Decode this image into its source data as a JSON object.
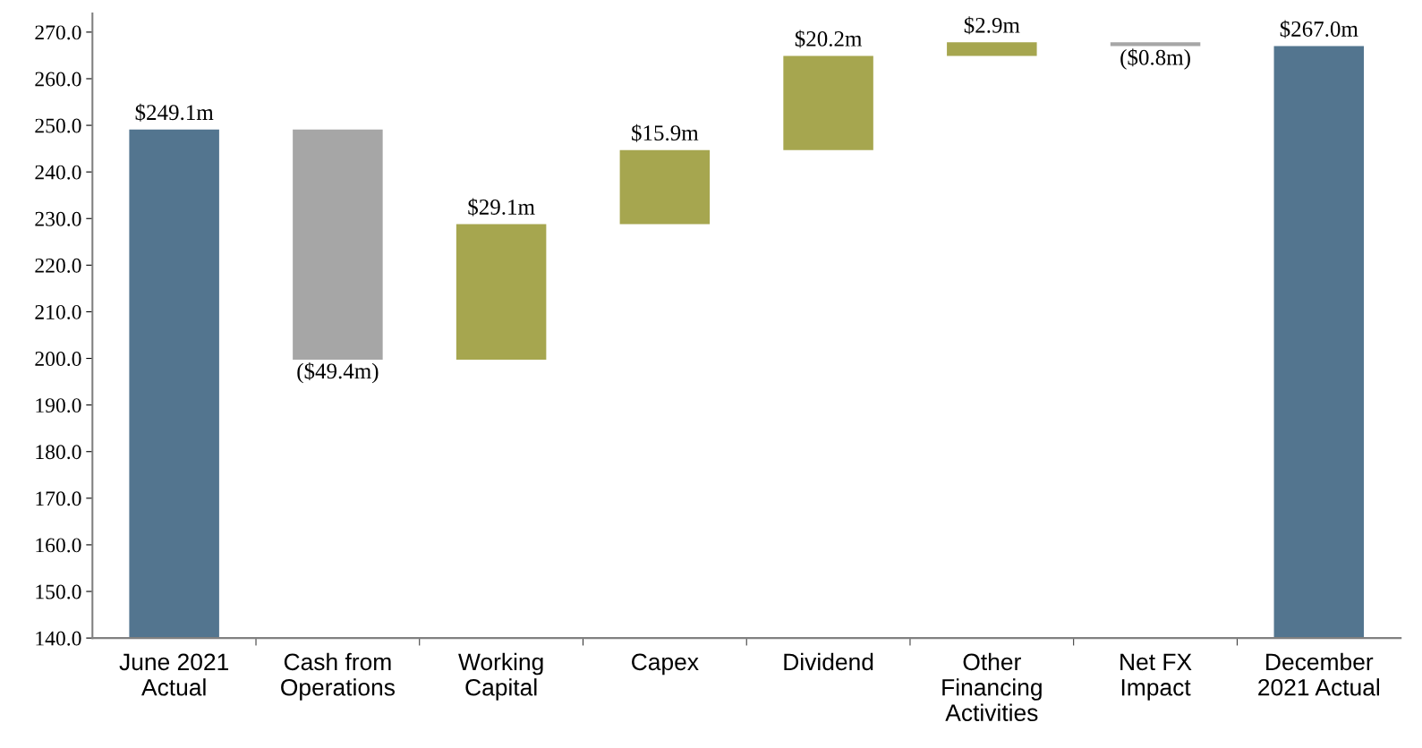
{
  "chart_data": {
    "type": "bar",
    "categories": [
      "June 2021\nActual",
      "Cash from\nOperations",
      "Working\nCapital",
      "Capex",
      "Dividend",
      "Other\nFinancing\nActivities",
      "Net FX\nImpact",
      "December\n2021 Actual"
    ],
    "values": [
      249.1,
      -49.4,
      29.1,
      15.9,
      20.2,
      2.9,
      -0.8,
      267.0
    ],
    "base": [
      null,
      249.1,
      199.7,
      228.8,
      244.7,
      264.9,
      267.8,
      null
    ],
    "colors": [
      "#53758f",
      "#a6a6a6",
      "#a6a64f",
      "#a6a64f",
      "#a6a64f",
      "#a6a64f",
      "#a6a6a6",
      "#53758f"
    ],
    "value_labels": [
      "$249.1m",
      "($49.4m)",
      "$29.1m",
      "$15.9m",
      "$20.2m",
      "$2.9m",
      "($0.8m)",
      "$267.0m"
    ],
    "ylim": [
      140,
      274
    ],
    "yticks": [
      {
        "value": 140,
        "label": "140.0"
      },
      {
        "value": 150,
        "label": "150.0"
      },
      {
        "value": 160,
        "label": "160.0"
      },
      {
        "value": 170,
        "label": "170.0"
      },
      {
        "value": 180,
        "label": "180.0"
      },
      {
        "value": 190,
        "label": "190.0"
      },
      {
        "value": 200,
        "label": "200.0"
      },
      {
        "value": 210,
        "label": "210.0"
      },
      {
        "value": 220,
        "label": "220.0"
      },
      {
        "value": 230,
        "label": "230.0"
      },
      {
        "value": 240,
        "label": "240.0"
      },
      {
        "value": 250,
        "label": "250.0"
      },
      {
        "value": 260,
        "label": "260.0"
      },
      {
        "value": 270,
        "label": "270.0"
      }
    ],
    "grid": false,
    "legend": false
  }
}
